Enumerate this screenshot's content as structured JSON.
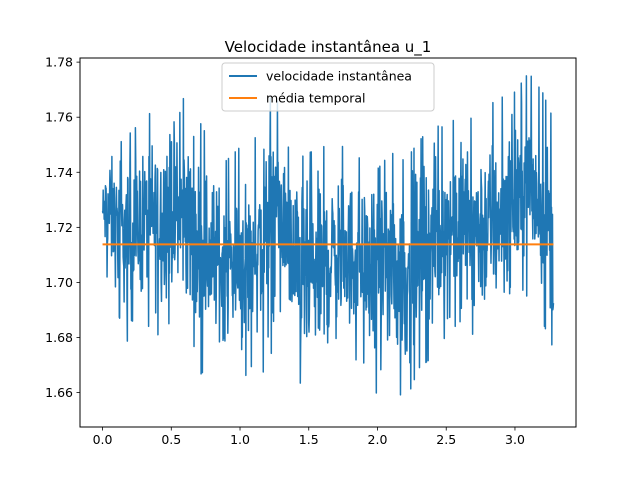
{
  "chart_data": {
    "type": "line",
    "title": "Velocidade instantânea u_1",
    "xlabel": "",
    "ylabel": "",
    "xlim": [
      -0.164,
      3.444
    ],
    "ylim": [
      1.6475,
      1.7815
    ],
    "x_ticks": [
      0.0,
      0.5,
      1.0,
      1.5,
      2.0,
      2.5,
      3.0
    ],
    "x_tick_labels": [
      "0.0",
      "0.5",
      "1.0",
      "1.5",
      "2.0",
      "2.5",
      "3.0"
    ],
    "y_ticks": [
      1.66,
      1.68,
      1.7,
      1.72,
      1.74,
      1.76,
      1.78
    ],
    "y_tick_labels": [
      "1.66",
      "1.68",
      "1.70",
      "1.72",
      "1.74",
      "1.76",
      "1.78"
    ],
    "grid": false,
    "legend_position": "upper-center",
    "series": [
      {
        "name": "velocidade instantânea",
        "color": "#1f77b4",
        "x_range": [
          0.0,
          3.28
        ],
        "envelope": {
          "x": [
            0.0,
            0.05,
            0.1,
            0.2,
            0.3,
            0.4,
            0.5,
            0.55,
            0.6,
            0.7,
            0.8,
            0.9,
            1.0,
            1.1,
            1.2,
            1.25,
            1.3,
            1.35,
            1.4,
            1.5,
            1.6,
            1.7,
            1.8,
            1.9,
            2.0,
            2.1,
            2.2,
            2.3,
            2.4,
            2.5,
            2.6,
            2.7,
            2.8,
            2.9,
            3.0,
            3.1,
            3.2,
            3.28
          ],
          "min": [
            1.71,
            1.697,
            1.69,
            1.675,
            1.685,
            1.68,
            1.685,
            1.688,
            1.68,
            1.665,
            1.67,
            1.668,
            1.662,
            1.67,
            1.665,
            1.68,
            1.69,
            1.68,
            1.668,
            1.654,
            1.66,
            1.668,
            1.672,
            1.67,
            1.658,
            1.665,
            1.655,
            1.668,
            1.672,
            1.68,
            1.685,
            1.68,
            1.675,
            1.68,
            1.69,
            1.695,
            1.685,
            1.675
          ],
          "max": [
            1.74,
            1.755,
            1.75,
            1.755,
            1.76,
            1.765,
            1.77,
            1.76,
            1.77,
            1.76,
            1.75,
            1.745,
            1.75,
            1.752,
            1.765,
            1.772,
            1.76,
            1.75,
            1.745,
            1.748,
            1.75,
            1.752,
            1.748,
            1.745,
            1.742,
            1.748,
            1.745,
            1.752,
            1.758,
            1.757,
            1.762,
            1.76,
            1.765,
            1.768,
            1.77,
            1.777,
            1.77,
            1.76
          ]
        }
      },
      {
        "name": "média temporal",
        "color": "#ff7f0e",
        "x": [
          0.0,
          3.28
        ],
        "y": [
          1.7138,
          1.7138
        ]
      }
    ]
  }
}
